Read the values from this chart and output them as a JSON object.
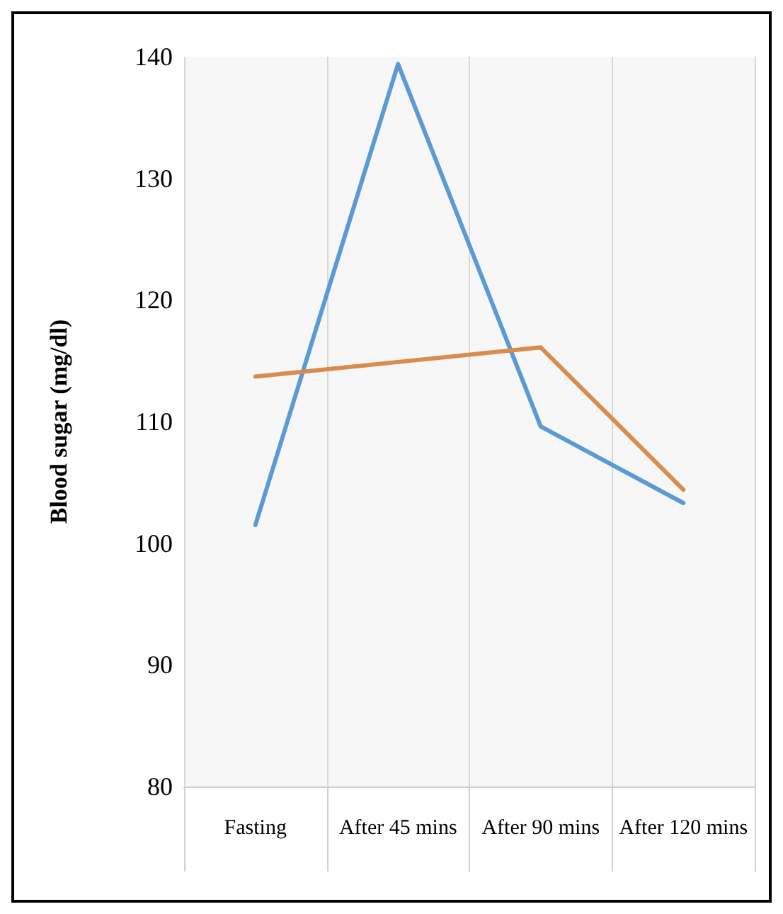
{
  "chart_data": {
    "type": "line",
    "ylabel": "Blood sugar (mg/dl)",
    "categories": [
      "Fasting",
      "After 45 mins",
      "After 90 mins",
      "After 120 mins"
    ],
    "series": [
      {
        "color": "#5b9bd5",
        "values": [
          101.5,
          139.4,
          109.6,
          103.3
        ]
      },
      {
        "color": "#d98c4e",
        "values": [
          113.7,
          114.9,
          116.1,
          104.4
        ]
      }
    ],
    "ylim": [
      80,
      140
    ],
    "yticks": [
      80,
      90,
      100,
      110,
      120,
      130,
      140
    ],
    "grid": "x",
    "marker": "none",
    "line_style": "solid"
  }
}
